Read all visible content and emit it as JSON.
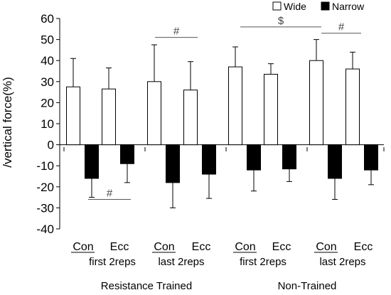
{
  "chart_data": {
    "type": "bar",
    "ylabel": "/vertical force(%)",
    "ylim": [
      -40,
      60
    ],
    "yticks": [
      -40,
      -30,
      -20,
      -10,
      0,
      10,
      20,
      30,
      40,
      50,
      60
    ],
    "grid": false,
    "legend_position": "top-right",
    "categories": [
      "Con",
      "Ecc",
      "Con",
      "Ecc",
      "Con",
      "Ecc",
      "Con",
      "Ecc"
    ],
    "subgroups": [
      "first 2reps",
      "last 2reps",
      "first 2reps",
      "last 2reps"
    ],
    "groups": [
      "Resistance Trained",
      "Non-Trained"
    ],
    "series": [
      {
        "name": "Wide",
        "color": "#ffffff",
        "values": [
          27.5,
          26.5,
          30,
          26,
          37,
          33.5,
          40,
          36
        ],
        "errors": [
          13.5,
          10,
          17.5,
          13.5,
          9.5,
          5,
          10,
          8
        ]
      },
      {
        "name": "Narrow",
        "color": "#000000",
        "values": [
          -16,
          -9,
          -18,
          -14,
          -12,
          -11.5,
          -16,
          -12
        ],
        "errors": [
          9,
          9,
          12,
          11.5,
          10,
          6,
          10,
          7
        ]
      }
    ],
    "annotations": [
      {
        "label": "#",
        "from": 0,
        "to": 1,
        "y": -26
      },
      {
        "label": "#",
        "from": 2,
        "to": 3,
        "y": 51
      },
      {
        "label": "$",
        "from": 4,
        "to": 6,
        "y": 56
      },
      {
        "label": "#",
        "from": 6,
        "to": 7,
        "y": 53
      }
    ]
  }
}
